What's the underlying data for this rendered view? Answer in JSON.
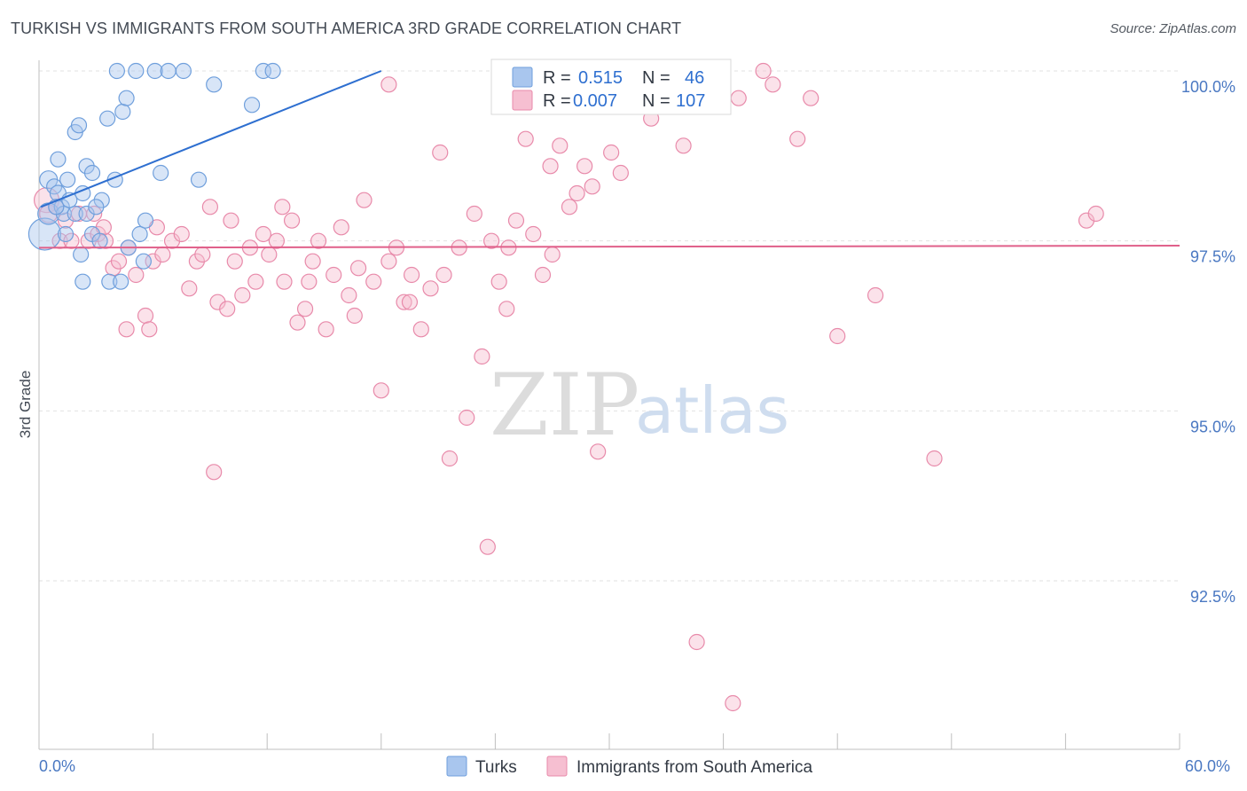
{
  "title": "TURKISH VS IMMIGRANTS FROM SOUTH AMERICA 3RD GRADE CORRELATION CHART",
  "source": "Source: ZipAtlas.com",
  "watermark": {
    "zip": "ZIP",
    "atlas": "atlas"
  },
  "colors": {
    "turks_fill": "#a9c6ee",
    "turks_stroke": "#6f9fdc",
    "turks_line": "#2e6fd0",
    "sa_fill": "#f6bfd1",
    "sa_stroke": "#e88aaa",
    "sa_line": "#e0608a",
    "grid": "#e2e2e2",
    "axis_label": "#4a78c2"
  },
  "legend": {
    "turks": {
      "r_label": "R =",
      "r_value": "0.515",
      "n_label": "N =",
      "n_value": "46"
    },
    "sa": {
      "r_label": "R =",
      "r_value": "0.007",
      "n_label": "N =",
      "n_value": "107"
    }
  },
  "bottom_legend": {
    "turks": "Turks",
    "sa": "Immigrants from South America"
  },
  "chart_data": {
    "type": "scatter",
    "title": "TURKISH VS IMMIGRANTS FROM SOUTH AMERICA 3RD GRADE CORRELATION CHART",
    "xlabel": "",
    "ylabel": "3rd Grade",
    "xlim": [
      0,
      60
    ],
    "ylim": [
      90.2,
      100.2
    ],
    "x_tick_labels": [
      "0.0%",
      "60.0%"
    ],
    "y_ticks": [
      92.5,
      95.0,
      97.5,
      100.0
    ],
    "y_tick_labels": [
      "92.5%",
      "95.0%",
      "97.5%",
      "100.0%"
    ],
    "grid": true,
    "legend_position": "top-center",
    "series": [
      {
        "name": "Turks",
        "R": 0.515,
        "N": 46,
        "trend": {
          "x": [
            0.1,
            18
          ],
          "y": [
            98.0,
            100.0
          ]
        },
        "points": [
          [
            0.3,
            97.6,
            18
          ],
          [
            0.5,
            97.9,
            12
          ],
          [
            0.5,
            98.4,
            10
          ],
          [
            0.8,
            98.3,
            8
          ],
          [
            1.0,
            98.7,
            8
          ],
          [
            1.0,
            98.2,
            9
          ],
          [
            1.2,
            98.0,
            8
          ],
          [
            1.3,
            97.9,
            8
          ],
          [
            1.5,
            98.4,
            8
          ],
          [
            1.9,
            99.1,
            8
          ],
          [
            2.1,
            99.2,
            8
          ],
          [
            2.5,
            98.6,
            8
          ],
          [
            2.8,
            98.5,
            8
          ],
          [
            2.8,
            97.6,
            8
          ],
          [
            3.3,
            98.1,
            8
          ],
          [
            3.6,
            99.3,
            8
          ],
          [
            4.0,
            98.4,
            8
          ],
          [
            4.1,
            100.0,
            8
          ],
          [
            4.4,
            99.4,
            8
          ],
          [
            4.6,
            99.6,
            8
          ],
          [
            5.1,
            100.0,
            8
          ],
          [
            5.3,
            97.6,
            8
          ],
          [
            5.5,
            97.2,
            8
          ],
          [
            5.6,
            97.8,
            8
          ],
          [
            6.1,
            100.0,
            8
          ],
          [
            6.4,
            98.5,
            8
          ],
          [
            6.8,
            100.0,
            8
          ],
          [
            7.6,
            100.0,
            8
          ],
          [
            8.4,
            98.4,
            8
          ],
          [
            9.2,
            99.8,
            8
          ],
          [
            11.2,
            99.5,
            8
          ],
          [
            11.8,
            100.0,
            8
          ],
          [
            12.3,
            100.0,
            8
          ],
          [
            2.3,
            96.9,
            8
          ],
          [
            3.7,
            96.9,
            8
          ],
          [
            4.3,
            96.9,
            8
          ],
          [
            2.2,
            97.3,
            8
          ],
          [
            3.2,
            97.5,
            8
          ],
          [
            1.9,
            97.9,
            8
          ],
          [
            2.5,
            97.9,
            8
          ],
          [
            0.9,
            98.0,
            8
          ],
          [
            1.4,
            97.6,
            8
          ],
          [
            3.0,
            98.0,
            8
          ],
          [
            2.3,
            98.2,
            8
          ],
          [
            4.7,
            97.4,
            8
          ],
          [
            1.6,
            98.1,
            8
          ]
        ]
      },
      {
        "name": "Immigrants from South America",
        "R": 0.007,
        "N": 107,
        "trend": {
          "x": [
            0,
            60
          ],
          "y": [
            97.4,
            97.43
          ]
        },
        "points": [
          [
            0.4,
            98.1,
            14
          ],
          [
            0.5,
            97.9,
            10
          ],
          [
            0.9,
            98.0,
            8
          ],
          [
            1.1,
            97.5,
            8
          ],
          [
            1.4,
            97.8,
            8
          ],
          [
            1.7,
            97.5,
            8
          ],
          [
            2.1,
            97.9,
            8
          ],
          [
            2.6,
            97.5,
            8
          ],
          [
            2.9,
            97.9,
            8
          ],
          [
            3.1,
            97.6,
            8
          ],
          [
            3.5,
            97.5,
            8
          ],
          [
            3.9,
            97.1,
            8
          ],
          [
            4.2,
            97.2,
            8
          ],
          [
            4.7,
            97.4,
            8
          ],
          [
            5.1,
            97.0,
            8
          ],
          [
            5.6,
            96.4,
            8
          ],
          [
            5.8,
            96.2,
            8
          ],
          [
            6.0,
            97.2,
            8
          ],
          [
            6.5,
            97.3,
            8
          ],
          [
            7.0,
            97.5,
            8
          ],
          [
            7.5,
            97.6,
            8
          ],
          [
            7.9,
            96.8,
            8
          ],
          [
            8.3,
            97.2,
            8
          ],
          [
            8.6,
            97.3,
            8
          ],
          [
            9.0,
            98.0,
            8
          ],
          [
            9.4,
            96.6,
            8
          ],
          [
            9.9,
            96.5,
            8
          ],
          [
            10.3,
            97.2,
            8
          ],
          [
            10.7,
            96.7,
            8
          ],
          [
            11.1,
            97.4,
            8
          ],
          [
            11.4,
            96.9,
            8
          ],
          [
            11.8,
            97.6,
            8
          ],
          [
            12.1,
            97.3,
            8
          ],
          [
            12.5,
            97.5,
            8
          ],
          [
            12.9,
            96.9,
            8
          ],
          [
            13.3,
            97.8,
            8
          ],
          [
            13.6,
            96.3,
            8
          ],
          [
            14.0,
            96.5,
            8
          ],
          [
            14.4,
            97.2,
            8
          ],
          [
            14.7,
            97.5,
            8
          ],
          [
            15.1,
            96.2,
            8
          ],
          [
            15.5,
            97.0,
            8
          ],
          [
            15.9,
            97.7,
            8
          ],
          [
            16.3,
            96.7,
            8
          ],
          [
            16.8,
            97.1,
            8
          ],
          [
            17.1,
            98.1,
            8
          ],
          [
            17.6,
            96.9,
            8
          ],
          [
            18.0,
            95.3,
            8
          ],
          [
            18.4,
            97.2,
            8
          ],
          [
            18.8,
            97.4,
            8
          ],
          [
            19.2,
            96.6,
            8
          ],
          [
            19.6,
            97.0,
            8
          ],
          [
            20.1,
            96.2,
            8
          ],
          [
            20.6,
            96.8,
            8
          ],
          [
            21.1,
            98.8,
            8
          ],
          [
            21.6,
            94.3,
            8
          ],
          [
            22.1,
            97.4,
            8
          ],
          [
            22.5,
            94.9,
            8
          ],
          [
            22.9,
            97.9,
            8
          ],
          [
            23.3,
            95.8,
            8
          ],
          [
            23.8,
            97.5,
            8
          ],
          [
            24.2,
            96.9,
            8
          ],
          [
            24.7,
            97.4,
            8
          ],
          [
            25.1,
            97.8,
            8
          ],
          [
            25.6,
            99.0,
            8
          ],
          [
            26.0,
            97.6,
            8
          ],
          [
            26.5,
            97.0,
            8
          ],
          [
            26.9,
            98.6,
            8
          ],
          [
            27.4,
            98.9,
            8
          ],
          [
            27.9,
            98.0,
            8
          ],
          [
            28.3,
            98.2,
            8
          ],
          [
            28.7,
            98.6,
            8
          ],
          [
            29.4,
            94.4,
            8
          ],
          [
            30.1,
            98.8,
            8
          ],
          [
            30.6,
            98.5,
            8
          ],
          [
            31.2,
            99.8,
            8
          ],
          [
            32.2,
            99.3,
            8
          ],
          [
            32.9,
            99.6,
            8
          ],
          [
            33.9,
            98.9,
            8
          ],
          [
            36.8,
            99.6,
            8
          ],
          [
            38.1,
            100.0,
            8
          ],
          [
            38.6,
            99.8,
            8
          ],
          [
            39.9,
            99.0,
            8
          ],
          [
            34.6,
            91.6,
            8
          ],
          [
            36.5,
            90.7,
            8
          ],
          [
            40.6,
            99.6,
            8
          ],
          [
            42.0,
            96.1,
            8
          ],
          [
            44.0,
            96.7,
            8
          ],
          [
            47.1,
            94.3,
            8
          ],
          [
            55.1,
            97.8,
            8
          ],
          [
            55.6,
            97.9,
            8
          ],
          [
            23.6,
            93.0,
            8
          ],
          [
            9.2,
            94.1,
            8
          ],
          [
            18.4,
            99.8,
            8
          ],
          [
            24.2,
            100.0,
            8
          ],
          [
            4.6,
            96.2,
            8
          ],
          [
            6.2,
            97.7,
            8
          ],
          [
            10.1,
            97.8,
            8
          ],
          [
            12.8,
            98.0,
            8
          ],
          [
            14.2,
            96.9,
            8
          ],
          [
            16.6,
            96.4,
            8
          ],
          [
            19.5,
            96.6,
            8
          ],
          [
            21.3,
            97.0,
            8
          ],
          [
            24.6,
            96.5,
            8
          ],
          [
            27.0,
            97.3,
            8
          ],
          [
            29.1,
            98.3,
            8
          ],
          [
            3.4,
            97.7,
            8
          ]
        ]
      }
    ]
  }
}
